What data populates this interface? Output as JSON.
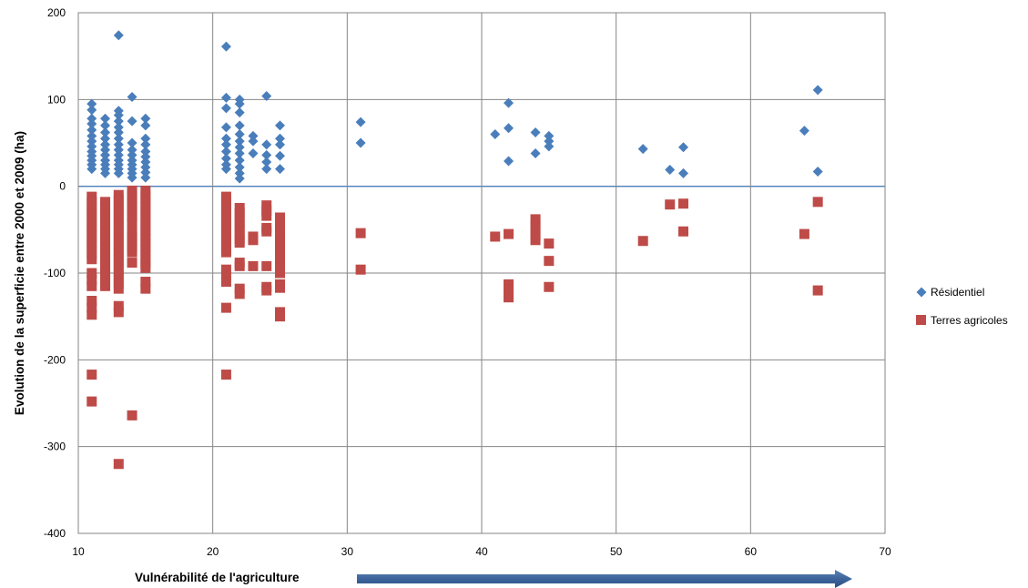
{
  "chart_data": {
    "type": "scatter",
    "title": "",
    "xlabel": "Vulnérabilité de l'agriculture",
    "ylabel": "Evolution de la superficie entre 2000 et 2009 (ha)",
    "xlim": [
      10,
      70
    ],
    "ylim": [
      -400,
      200
    ],
    "xticks": [
      10,
      20,
      30,
      40,
      50,
      60,
      70
    ],
    "yticks": [
      -400,
      -300,
      -200,
      -100,
      0,
      100,
      200
    ],
    "grid": true,
    "legend_position": "right",
    "x_axis_arrow": true,
    "series": [
      {
        "name": "Résidentiel",
        "marker": "diamond",
        "color": "#4a7ebb",
        "points": [
          [
            11,
            95
          ],
          [
            11,
            88
          ],
          [
            11,
            78
          ],
          [
            11,
            72
          ],
          [
            11,
            65
          ],
          [
            11,
            58
          ],
          [
            11,
            52
          ],
          [
            11,
            46
          ],
          [
            11,
            40
          ],
          [
            11,
            35
          ],
          [
            11,
            30
          ],
          [
            11,
            25
          ],
          [
            11,
            20
          ],
          [
            12,
            78
          ],
          [
            12,
            70
          ],
          [
            12,
            62
          ],
          [
            12,
            55
          ],
          [
            12,
            48
          ],
          [
            12,
            42
          ],
          [
            12,
            36
          ],
          [
            12,
            30
          ],
          [
            12,
            25
          ],
          [
            12,
            20
          ],
          [
            12,
            15
          ],
          [
            13,
            174
          ],
          [
            13,
            87
          ],
          [
            13,
            82
          ],
          [
            13,
            75
          ],
          [
            13,
            68
          ],
          [
            13,
            62
          ],
          [
            13,
            55
          ],
          [
            13,
            48
          ],
          [
            13,
            42
          ],
          [
            13,
            36
          ],
          [
            13,
            30
          ],
          [
            13,
            25
          ],
          [
            13,
            20
          ],
          [
            13,
            15
          ],
          [
            14,
            103
          ],
          [
            14,
            75
          ],
          [
            14,
            50
          ],
          [
            14,
            42
          ],
          [
            14,
            36
          ],
          [
            14,
            30
          ],
          [
            14,
            25
          ],
          [
            14,
            20
          ],
          [
            14,
            15
          ],
          [
            14,
            10
          ],
          [
            15,
            78
          ],
          [
            15,
            70
          ],
          [
            15,
            55
          ],
          [
            15,
            48
          ],
          [
            15,
            40
          ],
          [
            15,
            34
          ],
          [
            15,
            28
          ],
          [
            15,
            22
          ],
          [
            15,
            16
          ],
          [
            15,
            10
          ],
          [
            21,
            161
          ],
          [
            21,
            102
          ],
          [
            21,
            90
          ],
          [
            21,
            68
          ],
          [
            21,
            55
          ],
          [
            21,
            48
          ],
          [
            21,
            40
          ],
          [
            21,
            32
          ],
          [
            21,
            25
          ],
          [
            21,
            20
          ],
          [
            22,
            100
          ],
          [
            22,
            95
          ],
          [
            22,
            85
          ],
          [
            22,
            70
          ],
          [
            22,
            60
          ],
          [
            22,
            52
          ],
          [
            22,
            45
          ],
          [
            22,
            38
          ],
          [
            22,
            30
          ],
          [
            22,
            22
          ],
          [
            22,
            15
          ],
          [
            22,
            9
          ],
          [
            23,
            58
          ],
          [
            23,
            52
          ],
          [
            23,
            38
          ],
          [
            24,
            104
          ],
          [
            24,
            48
          ],
          [
            24,
            36
          ],
          [
            24,
            28
          ],
          [
            24,
            20
          ],
          [
            25,
            70
          ],
          [
            25,
            55
          ],
          [
            25,
            48
          ],
          [
            25,
            35
          ],
          [
            25,
            20
          ],
          [
            31,
            74
          ],
          [
            31,
            50
          ],
          [
            41,
            60
          ],
          [
            42,
            96
          ],
          [
            42,
            67
          ],
          [
            42,
            29
          ],
          [
            44,
            62
          ],
          [
            44,
            38
          ],
          [
            45,
            58
          ],
          [
            45,
            52
          ],
          [
            45,
            46
          ],
          [
            52,
            43
          ],
          [
            54,
            19
          ],
          [
            55,
            45
          ],
          [
            55,
            15
          ],
          [
            64,
            64
          ],
          [
            65,
            111
          ],
          [
            65,
            17
          ]
        ]
      },
      {
        "name": "Terres agricoles",
        "marker": "square",
        "color": "#be4b48",
        "points": [
          [
            11,
            -12
          ],
          [
            11,
            -18
          ],
          [
            11,
            -24
          ],
          [
            11,
            -30
          ],
          [
            11,
            -36
          ],
          [
            11,
            -42
          ],
          [
            11,
            -48
          ],
          [
            11,
            -54
          ],
          [
            11,
            -60
          ],
          [
            11,
            -66
          ],
          [
            11,
            -72
          ],
          [
            11,
            -78
          ],
          [
            11,
            -84
          ],
          [
            11,
            -100
          ],
          [
            11,
            -108
          ],
          [
            11,
            -115
          ],
          [
            11,
            -132
          ],
          [
            11,
            -140
          ],
          [
            11,
            -148
          ],
          [
            11,
            -217
          ],
          [
            11,
            -248
          ],
          [
            12,
            -18
          ],
          [
            12,
            -24
          ],
          [
            12,
            -30
          ],
          [
            12,
            -36
          ],
          [
            12,
            -42
          ],
          [
            12,
            -48
          ],
          [
            12,
            -54
          ],
          [
            12,
            -60
          ],
          [
            12,
            -66
          ],
          [
            12,
            -72
          ],
          [
            12,
            -78
          ],
          [
            12,
            -84
          ],
          [
            12,
            -90
          ],
          [
            12,
            -96
          ],
          [
            12,
            -102
          ],
          [
            12,
            -108
          ],
          [
            12,
            -115
          ],
          [
            13,
            -10
          ],
          [
            13,
            -16
          ],
          [
            13,
            -22
          ],
          [
            13,
            -28
          ],
          [
            13,
            -34
          ],
          [
            13,
            -40
          ],
          [
            13,
            -46
          ],
          [
            13,
            -52
          ],
          [
            13,
            -58
          ],
          [
            13,
            -64
          ],
          [
            13,
            -70
          ],
          [
            13,
            -76
          ],
          [
            13,
            -82
          ],
          [
            13,
            -88
          ],
          [
            13,
            -94
          ],
          [
            13,
            -100
          ],
          [
            13,
            -106
          ],
          [
            13,
            -112
          ],
          [
            13,
            -118
          ],
          [
            13,
            -138
          ],
          [
            13,
            -145
          ],
          [
            13,
            -320
          ],
          [
            14,
            -5
          ],
          [
            14,
            -11
          ],
          [
            14,
            -17
          ],
          [
            14,
            -23
          ],
          [
            14,
            -29
          ],
          [
            14,
            -35
          ],
          [
            14,
            -41
          ],
          [
            14,
            -52
          ],
          [
            14,
            -58
          ],
          [
            14,
            -64
          ],
          [
            14,
            -70
          ],
          [
            14,
            -76
          ],
          [
            14,
            -88
          ],
          [
            14,
            -264
          ],
          [
            15,
            -5
          ],
          [
            15,
            -11
          ],
          [
            15,
            -17
          ],
          [
            15,
            -23
          ],
          [
            15,
            -29
          ],
          [
            15,
            -35
          ],
          [
            15,
            -41
          ],
          [
            15,
            -47
          ],
          [
            15,
            -53
          ],
          [
            15,
            -59
          ],
          [
            15,
            -65
          ],
          [
            15,
            -71
          ],
          [
            15,
            -77
          ],
          [
            15,
            -83
          ],
          [
            15,
            -89
          ],
          [
            15,
            -94
          ],
          [
            15,
            -110
          ],
          [
            15,
            -118
          ],
          [
            21,
            -12
          ],
          [
            21,
            -18
          ],
          [
            21,
            -24
          ],
          [
            21,
            -30
          ],
          [
            21,
            -36
          ],
          [
            21,
            -42
          ],
          [
            21,
            -48
          ],
          [
            21,
            -54
          ],
          [
            21,
            -60
          ],
          [
            21,
            -66
          ],
          [
            21,
            -72
          ],
          [
            21,
            -76
          ],
          [
            21,
            -96
          ],
          [
            21,
            -103
          ],
          [
            21,
            -110
          ],
          [
            21,
            -140
          ],
          [
            21,
            -217
          ],
          [
            22,
            -25
          ],
          [
            22,
            -31
          ],
          [
            22,
            -37
          ],
          [
            22,
            -43
          ],
          [
            22,
            -49
          ],
          [
            22,
            -55
          ],
          [
            22,
            -61
          ],
          [
            22,
            -65
          ],
          [
            22,
            -88
          ],
          [
            22,
            -92
          ],
          [
            22,
            -118
          ],
          [
            22,
            -124
          ],
          [
            23,
            -58
          ],
          [
            23,
            -62
          ],
          [
            23,
            -92
          ],
          [
            24,
            -22
          ],
          [
            24,
            -28
          ],
          [
            24,
            -34
          ],
          [
            24,
            -48
          ],
          [
            24,
            -52
          ],
          [
            24,
            -92
          ],
          [
            24,
            -116
          ],
          [
            24,
            -120
          ],
          [
            25,
            -36
          ],
          [
            25,
            -42
          ],
          [
            25,
            -52
          ],
          [
            25,
            -58
          ],
          [
            25,
            -64
          ],
          [
            25,
            -70
          ],
          [
            25,
            -76
          ],
          [
            25,
            -82
          ],
          [
            25,
            -88
          ],
          [
            25,
            -94
          ],
          [
            25,
            -100
          ],
          [
            25,
            -113
          ],
          [
            25,
            -117
          ],
          [
            25,
            -145
          ],
          [
            25,
            -150
          ],
          [
            31,
            -54
          ],
          [
            31,
            -96
          ],
          [
            41,
            -58
          ],
          [
            42,
            -55
          ],
          [
            42,
            -113
          ],
          [
            42,
            -119
          ],
          [
            42,
            -125
          ],
          [
            42,
            -128
          ],
          [
            44,
            -38
          ],
          [
            44,
            -44
          ],
          [
            44,
            -50
          ],
          [
            44,
            -56
          ],
          [
            44,
            -62
          ],
          [
            45,
            -66
          ],
          [
            45,
            -86
          ],
          [
            45,
            -116
          ],
          [
            52,
            -63
          ],
          [
            54,
            -21
          ],
          [
            55,
            -20
          ],
          [
            55,
            -52
          ],
          [
            64,
            -55
          ],
          [
            65,
            -18
          ],
          [
            65,
            -120
          ]
        ]
      }
    ]
  }
}
